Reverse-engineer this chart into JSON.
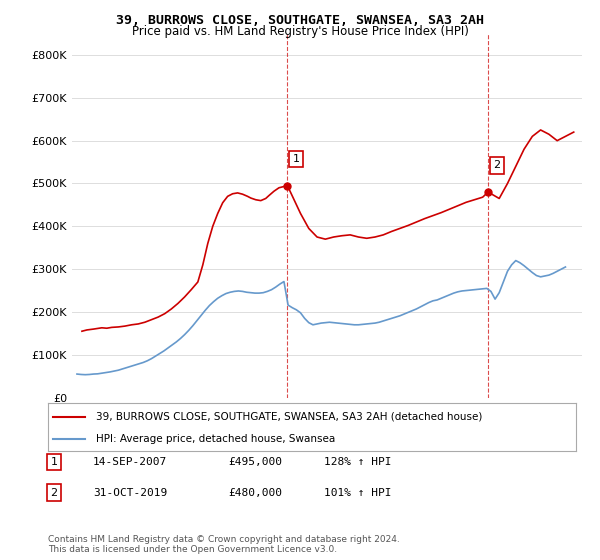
{
  "title": "39, BURROWS CLOSE, SOUTHGATE, SWANSEA, SA3 2AH",
  "subtitle": "Price paid vs. HM Land Registry's House Price Index (HPI)",
  "footer": "Contains HM Land Registry data © Crown copyright and database right 2024.\nThis data is licensed under the Open Government Licence v3.0.",
  "legend_line1": "39, BURROWS CLOSE, SOUTHGATE, SWANSEA, SA3 2AH (detached house)",
  "legend_line2": "HPI: Average price, detached house, Swansea",
  "transaction1_label": "1",
  "transaction1_date": "14-SEP-2007",
  "transaction1_price": "£495,000",
  "transaction1_hpi": "128% ↑ HPI",
  "transaction2_label": "2",
  "transaction2_date": "31-OCT-2019",
  "transaction2_price": "£480,000",
  "transaction2_hpi": "101% ↑ HPI",
  "hpi_color": "#6699cc",
  "price_color": "#cc0000",
  "vline_color": "#cc0000",
  "background_color": "#ffffff",
  "grid_color": "#dddddd",
  "ylim": [
    0,
    850000
  ],
  "yticks": [
    0,
    100000,
    200000,
    300000,
    400000,
    500000,
    600000,
    700000,
    800000
  ],
  "xlim_start": 1995.0,
  "xlim_end": 2025.5,
  "transaction1_x": 2007.71,
  "transaction1_y": 495000,
  "transaction2_x": 2019.83,
  "transaction2_y": 480000,
  "hpi_dates": [
    1995.0,
    1995.25,
    1995.5,
    1995.75,
    1996.0,
    1996.25,
    1996.5,
    1996.75,
    1997.0,
    1997.25,
    1997.5,
    1997.75,
    1998.0,
    1998.25,
    1998.5,
    1998.75,
    1999.0,
    1999.25,
    1999.5,
    1999.75,
    2000.0,
    2000.25,
    2000.5,
    2000.75,
    2001.0,
    2001.25,
    2001.5,
    2001.75,
    2002.0,
    2002.25,
    2002.5,
    2002.75,
    2003.0,
    2003.25,
    2003.5,
    2003.75,
    2004.0,
    2004.25,
    2004.5,
    2004.75,
    2005.0,
    2005.25,
    2005.5,
    2005.75,
    2006.0,
    2006.25,
    2006.5,
    2006.75,
    2007.0,
    2007.25,
    2007.5,
    2007.75,
    2008.0,
    2008.25,
    2008.5,
    2008.75,
    2009.0,
    2009.25,
    2009.5,
    2009.75,
    2010.0,
    2010.25,
    2010.5,
    2010.75,
    2011.0,
    2011.25,
    2011.5,
    2011.75,
    2012.0,
    2012.25,
    2012.5,
    2012.75,
    2013.0,
    2013.25,
    2013.5,
    2013.75,
    2014.0,
    2014.25,
    2014.5,
    2014.75,
    2015.0,
    2015.25,
    2015.5,
    2015.75,
    2016.0,
    2016.25,
    2016.5,
    2016.75,
    2017.0,
    2017.25,
    2017.5,
    2017.75,
    2018.0,
    2018.25,
    2018.5,
    2018.75,
    2019.0,
    2019.25,
    2019.5,
    2019.75,
    2020.0,
    2020.25,
    2020.5,
    2020.75,
    2021.0,
    2021.25,
    2021.5,
    2021.75,
    2022.0,
    2022.25,
    2022.5,
    2022.75,
    2023.0,
    2023.25,
    2023.5,
    2023.75,
    2024.0,
    2024.25,
    2024.5
  ],
  "hpi_values": [
    55000,
    54000,
    53500,
    54000,
    55000,
    55500,
    57000,
    58500,
    60000,
    62000,
    64000,
    67000,
    70000,
    73000,
    76000,
    79000,
    82000,
    86000,
    91000,
    97000,
    103000,
    109000,
    116000,
    123000,
    130000,
    138000,
    147000,
    157000,
    168000,
    180000,
    192000,
    204000,
    215000,
    224000,
    232000,
    238000,
    243000,
    246000,
    248000,
    249000,
    248000,
    246000,
    245000,
    244000,
    244000,
    245000,
    248000,
    252000,
    258000,
    265000,
    271000,
    216000,
    210000,
    205000,
    198000,
    185000,
    175000,
    170000,
    172000,
    174000,
    175000,
    176000,
    175000,
    174000,
    173000,
    172000,
    171000,
    170000,
    170000,
    171000,
    172000,
    173000,
    174000,
    176000,
    179000,
    182000,
    185000,
    188000,
    191000,
    195000,
    199000,
    203000,
    207000,
    212000,
    217000,
    222000,
    226000,
    228000,
    232000,
    236000,
    240000,
    244000,
    247000,
    249000,
    250000,
    251000,
    252000,
    253000,
    254000,
    255000,
    248000,
    230000,
    245000,
    270000,
    295000,
    310000,
    320000,
    315000,
    308000,
    300000,
    292000,
    285000,
    282000,
    284000,
    286000,
    290000,
    295000,
    300000,
    305000
  ],
  "price_dates": [
    1995.3,
    1995.6,
    1996.0,
    1996.5,
    1996.8,
    1997.1,
    1997.5,
    1997.9,
    1998.3,
    1998.7,
    1999.1,
    1999.5,
    1999.9,
    2000.3,
    2000.7,
    2001.1,
    2001.5,
    2001.9,
    2002.3,
    2002.6,
    2002.9,
    2003.2,
    2003.5,
    2003.8,
    2004.1,
    2004.4,
    2004.7,
    2005.0,
    2005.3,
    2005.5,
    2005.8,
    2006.1,
    2006.4,
    2006.6,
    2006.9,
    2007.2,
    2007.71,
    2008.5,
    2009.0,
    2009.5,
    2010.0,
    2010.5,
    2011.0,
    2011.5,
    2012.0,
    2012.5,
    2013.0,
    2013.5,
    2014.0,
    2014.5,
    2015.0,
    2015.5,
    2016.0,
    2016.5,
    2017.0,
    2017.5,
    2018.0,
    2018.5,
    2019.0,
    2019.5,
    2019.83,
    2020.5,
    2021.0,
    2021.5,
    2022.0,
    2022.5,
    2023.0,
    2023.5,
    2024.0,
    2024.5,
    2025.0
  ],
  "price_values": [
    155000,
    158000,
    160000,
    163000,
    162000,
    164000,
    165000,
    167000,
    170000,
    172000,
    176000,
    182000,
    188000,
    196000,
    207000,
    220000,
    235000,
    252000,
    270000,
    310000,
    360000,
    400000,
    430000,
    455000,
    470000,
    476000,
    478000,
    475000,
    470000,
    466000,
    462000,
    460000,
    465000,
    472000,
    482000,
    490000,
    495000,
    430000,
    395000,
    375000,
    370000,
    375000,
    378000,
    380000,
    375000,
    372000,
    375000,
    380000,
    388000,
    395000,
    402000,
    410000,
    418000,
    425000,
    432000,
    440000,
    448000,
    456000,
    462000,
    468000,
    480000,
    465000,
    500000,
    540000,
    580000,
    610000,
    625000,
    615000,
    600000,
    610000,
    620000
  ]
}
